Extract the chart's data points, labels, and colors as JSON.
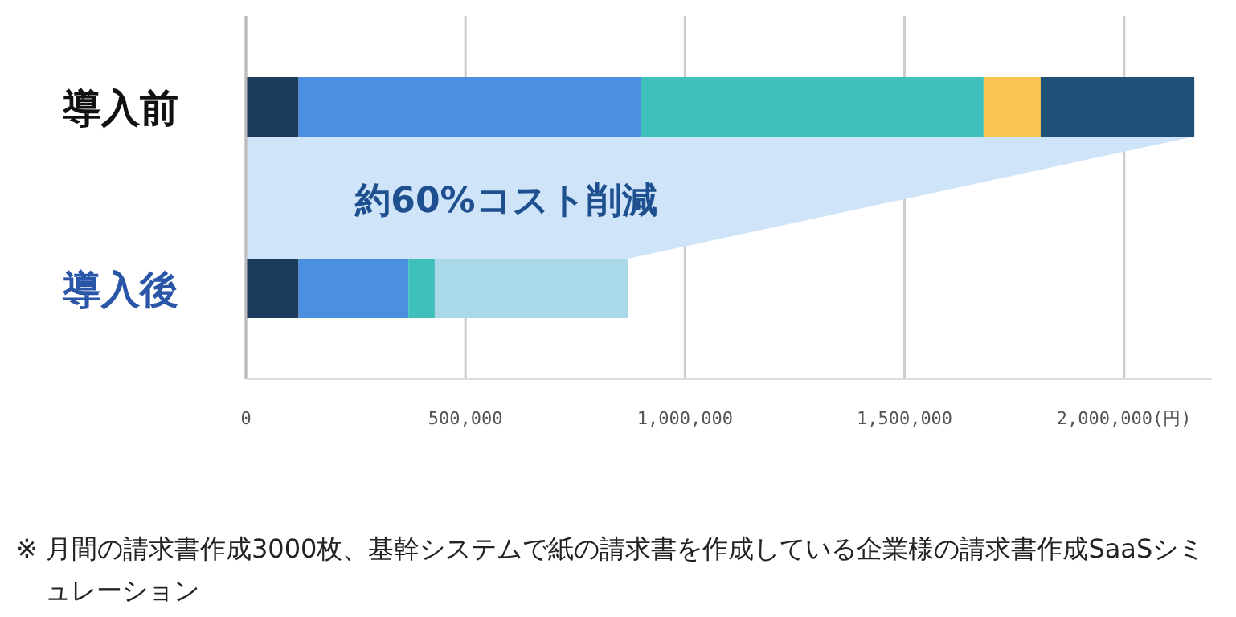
{
  "chart_data": {
    "type": "bar",
    "orientation": "horizontal",
    "stacked": true,
    "categories": [
      "導入前",
      "導入後"
    ],
    "series": [
      {
        "color": "#1b3a5c",
        "values": [
          120000,
          120000
        ]
      },
      {
        "color": "#4a8fe0",
        "values": [
          780000,
          250000
        ]
      },
      {
        "color": "#40c0bc",
        "values": [
          780000,
          60000
        ]
      },
      {
        "color": "#f7c550",
        "values": [
          130000,
          null
        ]
      },
      {
        "color": "#1f5078",
        "values": [
          350000,
          null
        ]
      },
      {
        "color": "#a9d8e8",
        "values": [
          null,
          440000
        ]
      }
    ],
    "xlim": [
      0,
      2200000
    ],
    "xticks": [
      0,
      {
        "value": 500000,
        "label": "500,000"
      },
      {
        "value": 1000000,
        "label": "1,000,000"
      },
      {
        "value": 1500000,
        "label": "1,500,000"
      },
      {
        "value": 2000000,
        "label": "2,000,000(円)"
      }
    ],
    "grid": "x",
    "annotations": [
      {
        "text": "約60%コスト削減"
      },
      "※ 月間の請求書作成3000枚、基幹システムで紙の請求書を作成している企業様の請求書作成SaaSシミュレーション"
    ]
  }
}
